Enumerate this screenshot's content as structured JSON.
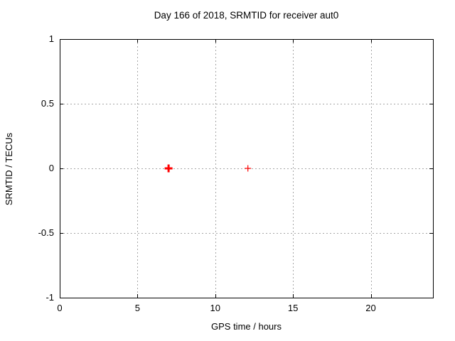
{
  "chart_data": {
    "type": "scatter",
    "title": "Day 166 of 2018, SRMTID for receiver aut0",
    "xlabel": "GPS time / hours",
    "ylabel": "SRMTID / TECUs",
    "xlim": [
      0,
      24
    ],
    "ylim": [
      -1,
      1
    ],
    "xticks": [
      0,
      5,
      10,
      15,
      20
    ],
    "yticks": [
      -1,
      -0.5,
      0,
      0.5,
      1
    ],
    "grid": true,
    "grid_style": "dashed",
    "grid_color": "#a6a6a6",
    "border_color": "#000000",
    "marker_color": "#ff0000",
    "series": [
      {
        "name": "SRMTID",
        "marker": "plus",
        "color": "#ff0000",
        "points": [
          {
            "x": 7.0,
            "y": 0.0,
            "bold": true
          },
          {
            "x": 12.1,
            "y": 0.0,
            "bold": false
          }
        ]
      }
    ]
  }
}
